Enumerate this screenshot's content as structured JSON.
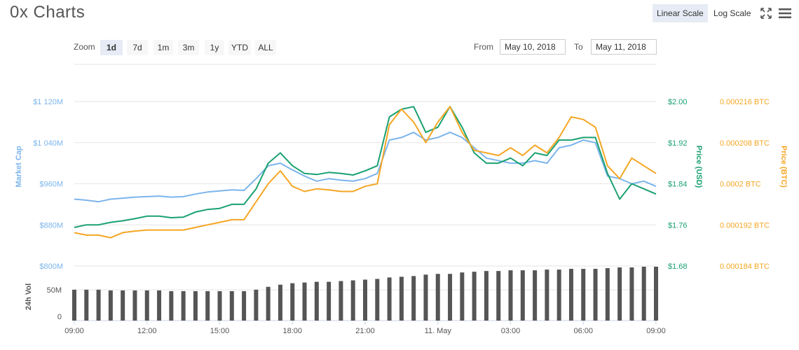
{
  "header": {
    "title": "0x Charts",
    "linear_scale_label": "Linear Scale",
    "log_scale_label": "Log Scale",
    "fullscreen_icon": "expand-icon",
    "menu_icon": "hamburger-menu-icon"
  },
  "zoom": {
    "label": "Zoom",
    "options": [
      "1d",
      "7d",
      "1m",
      "3m",
      "1y",
      "YTD",
      "ALL"
    ],
    "selected": "1d"
  },
  "range": {
    "from_label": "From",
    "from_value": "May 10, 2018",
    "to_label": "To",
    "to_value": "May 11, 2018"
  },
  "colors": {
    "market_cap": "#7cb5ec",
    "price_usd": "#1aa170",
    "price_btc": "#f5a623",
    "volume": "#555555",
    "grid": "#e6e6e6"
  },
  "chart_data": {
    "type": "line",
    "title": "0x Charts",
    "x_ticks": [
      "09:00",
      "12:00",
      "15:00",
      "18:00",
      "21:00",
      "11. May",
      "03:00",
      "06:00",
      "09:00"
    ],
    "axes": {
      "market_cap": {
        "label": "Market Cap",
        "ticks": [
          "$1 120M",
          "$1 040M",
          "$960M",
          "$880M",
          "$800M"
        ],
        "ylim": [
          800,
          1120
        ]
      },
      "price_usd": {
        "label": "Price (USD)",
        "ticks": [
          "$2.00",
          "$1.92",
          "$1.84",
          "$1.76",
          "$1.68"
        ],
        "ylim": [
          1.68,
          2.0
        ]
      },
      "price_btc": {
        "label": "Price (BTC)",
        "ticks": [
          "0.000216 BTC",
          "0.000208 BTC",
          "0.0002 BTC",
          "0.000192 BTC",
          "0.000184 BTC"
        ],
        "ylim": [
          0.000184,
          0.000216
        ]
      },
      "volume": {
        "label": "24h Vol",
        "ticks": [
          "50M",
          "0"
        ],
        "ylim": [
          0,
          75
        ]
      }
    },
    "x_hours": [
      0,
      0.5,
      1,
      1.5,
      2,
      2.5,
      3,
      3.5,
      4,
      4.5,
      5,
      5.5,
      6,
      6.5,
      7,
      7.5,
      8,
      8.5,
      9,
      9.5,
      10,
      10.5,
      11,
      11.5,
      12,
      12.5,
      13,
      13.5,
      14,
      14.5,
      15,
      15.5,
      16,
      16.5,
      17,
      17.5,
      18,
      18.5,
      19,
      19.5,
      20,
      20.5,
      21,
      21.5,
      22,
      22.5,
      23,
      23.5,
      24
    ],
    "series": [
      {
        "name": "Market Cap",
        "axis": "market_cap",
        "values": [
          930,
          928,
          925,
          930,
          932,
          934,
          935,
          936,
          934,
          935,
          940,
          944,
          946,
          948,
          947,
          970,
          995,
          1000,
          987,
          975,
          965,
          970,
          967,
          965,
          970,
          980,
          1045,
          1050,
          1060,
          1045,
          1050,
          1060,
          1050,
          1030,
          1010,
          1005,
          1000,
          1000,
          1005,
          1000,
          1030,
          1035,
          1045,
          1040,
          975,
          970,
          960,
          965,
          955
        ]
      },
      {
        "name": "Price (USD)",
        "axis": "price_usd",
        "values": [
          1.755,
          1.76,
          1.76,
          1.765,
          1.768,
          1.772,
          1.777,
          1.777,
          1.774,
          1.775,
          1.785,
          1.79,
          1.792,
          1.8,
          1.8,
          1.83,
          1.88,
          1.9,
          1.875,
          1.86,
          1.858,
          1.862,
          1.86,
          1.857,
          1.865,
          1.875,
          1.97,
          1.985,
          1.99,
          1.94,
          1.95,
          1.99,
          1.95,
          1.9,
          1.88,
          1.88,
          1.89,
          1.875,
          1.9,
          1.895,
          1.925,
          1.925,
          1.93,
          1.93,
          1.86,
          1.81,
          1.84,
          1.83,
          1.82
        ]
      },
      {
        "name": "Price (BTC)",
        "axis": "price_btc",
        "values": [
          0.0001905,
          0.00019,
          0.00019,
          0.0001895,
          0.0001905,
          0.0001908,
          0.000191,
          0.000191,
          0.000191,
          0.000191,
          0.0001915,
          0.000192,
          0.0001925,
          0.000193,
          0.000193,
          0.0001965,
          0.0002,
          0.0002025,
          0.0001995,
          0.0001985,
          0.000199,
          0.0001988,
          0.0001985,
          0.0001985,
          0.0001995,
          0.0002,
          0.0002115,
          0.0002145,
          0.000212,
          0.000208,
          0.000212,
          0.000215,
          0.00021,
          0.0002065,
          0.000206,
          0.0002055,
          0.000207,
          0.0002055,
          0.0002075,
          0.000206,
          0.000209,
          0.000213,
          0.0002125,
          0.000211,
          0.0002035,
          0.000201,
          0.000205,
          0.0002035,
          0.000202
        ]
      },
      {
        "name": "24h Vol",
        "axis": "volume",
        "type": "bar",
        "values": [
          43,
          43,
          43,
          42,
          42,
          42,
          42,
          42,
          41,
          41,
          41,
          41,
          41,
          41,
          41,
          43,
          47,
          50,
          52,
          53,
          54,
          54,
          55,
          56,
          57,
          58,
          60,
          61,
          62,
          64,
          65,
          65,
          67,
          68,
          69,
          69,
          70,
          70,
          70,
          71,
          71,
          72,
          72,
          72,
          73,
          74,
          74,
          75,
          75
        ]
      }
    ]
  }
}
